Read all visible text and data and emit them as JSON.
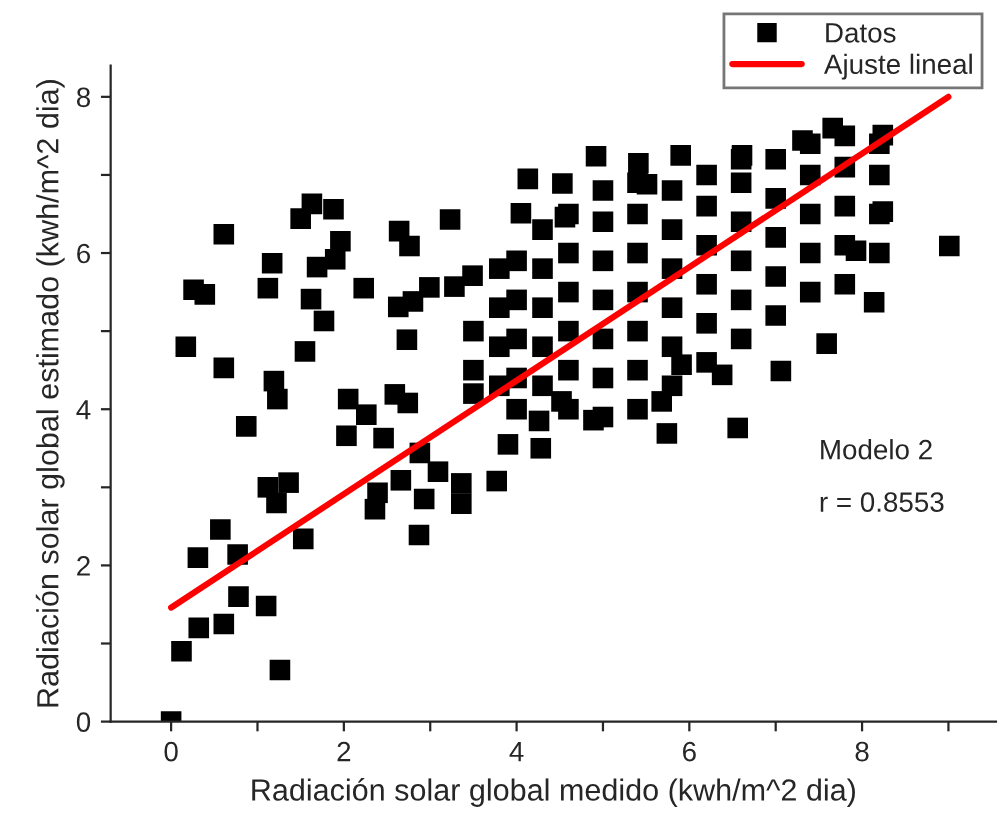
{
  "chart_data": {
    "type": "scatter",
    "xlabel": "Radiación solar global medido (kwh/m^2 dia)",
    "ylabel": "Radiación solar global estimado (kwh/m^2 dia)",
    "xlim": [
      -0.7,
      9.55
    ],
    "ylim": [
      0,
      8.4
    ],
    "xticks": [
      0,
      {
        "value": 1,
        "label": null
      },
      2,
      {
        "value": 3,
        "label": null
      },
      4,
      {
        "value": 5,
        "label": null
      },
      6,
      {
        "value": 7,
        "label": null
      },
      8,
      {
        "value": 9,
        "label": null
      }
    ],
    "yticks": [
      0,
      {
        "value": 1,
        "label": null
      },
      2,
      {
        "value": 3,
        "label": null
      },
      4,
      {
        "value": 5,
        "label": null
      },
      6,
      {
        "value": 7,
        "label": null
      },
      8
    ],
    "grid": false,
    "legend": "top right",
    "series": [
      {
        "name": "Datos",
        "marker": "square",
        "color": "#000000",
        "x": [
          0.0,
          0.12,
          0.32,
          0.61,
          0.78,
          1.1,
          1.26,
          0.31,
          0.57,
          0.77,
          1.53,
          1.12,
          1.22,
          1.36,
          0.87,
          0.17,
          0.61,
          0.26,
          0.39,
          0.61,
          1.12,
          1.17,
          1.19,
          1.23,
          1.55,
          1.5,
          1.63,
          1.88,
          1.96,
          1.9,
          1.69,
          1.62,
          1.77,
          2.05,
          2.03,
          2.26,
          2.23,
          2.39,
          2.36,
          2.46,
          2.59,
          2.74,
          2.63,
          2.73,
          2.64,
          2.76,
          2.66,
          2.87,
          2.93,
          3.09,
          2.88,
          3.36,
          3.36,
          3.77,
          3.23,
          3.28,
          3.49,
          2.99,
          2.8,
          4.13,
          4.05,
          4.26,
          4.28,
          3.9,
          4.92,
          5.41,
          5.9,
          4.53,
          9.01,
          8.14,
          7.59,
          7.06,
          6.56,
          5.74,
          4.89,
          7.66,
          8.24,
          8.24,
          7.93,
          5.68,
          6.38,
          5.91,
          4.52,
          4.56,
          6.61,
          7.31,
          5.51,
          3.5,
          3.5,
          3.5,
          3.8,
          3.8,
          3.8,
          3.8,
          4.0,
          4.0,
          4.0,
          4.0,
          4.0,
          4.3,
          4.3,
          4.3,
          4.3,
          4.3,
          4.6,
          4.6,
          4.6,
          4.6,
          4.6,
          4.6,
          5.0,
          5.0,
          5.0,
          5.0,
          5.0,
          5.0,
          5.0,
          5.4,
          5.4,
          5.4,
          5.4,
          5.4,
          5.4,
          5.4,
          5.8,
          5.8,
          5.8,
          5.8,
          5.8,
          5.8,
          6.2,
          6.2,
          6.2,
          6.2,
          6.2,
          6.2,
          6.6,
          6.6,
          6.6,
          6.6,
          6.6,
          6.6,
          7.0,
          7.0,
          7.0,
          7.0,
          7.0,
          7.4,
          7.4,
          7.4,
          7.4,
          7.4,
          7.8,
          7.8,
          7.8,
          7.8,
          7.8,
          8.2,
          8.2,
          8.2,
          8.2
        ],
        "values": [
          0.0,
          0.9,
          1.2,
          1.25,
          1.6,
          1.48,
          0.66,
          2.1,
          2.46,
          2.14,
          2.34,
          3.0,
          2.8,
          3.06,
          3.78,
          4.8,
          4.53,
          5.53,
          5.47,
          6.24,
          5.55,
          5.87,
          4.36,
          4.13,
          4.74,
          6.44,
          6.63,
          6.56,
          6.15,
          5.92,
          5.82,
          5.41,
          5.13,
          4.13,
          3.66,
          3.93,
          5.55,
          2.93,
          2.72,
          3.63,
          4.19,
          4.08,
          5.31,
          4.89,
          6.28,
          6.09,
          3.09,
          2.39,
          2.85,
          3.2,
          3.44,
          3.05,
          2.79,
          3.08,
          6.43,
          5.57,
          5.71,
          5.56,
          5.38,
          6.95,
          6.51,
          3.85,
          3.5,
          3.55,
          7.24,
          7.15,
          7.25,
          6.89,
          6.09,
          5.37,
          4.84,
          4.49,
          3.76,
          3.69,
          3.86,
          7.6,
          7.51,
          6.53,
          6.03,
          4.1,
          4.44,
          4.57,
          4.1,
          6.46,
          7.25,
          7.44,
          6.88,
          4.5,
          5.0,
          4.2,
          4.8,
          5.3,
          4.3,
          5.8,
          4.4,
          4.9,
          5.4,
          5.9,
          4.0,
          4.3,
          4.8,
          5.3,
          5.8,
          6.3,
          4.0,
          4.5,
          5.0,
          5.5,
          6.0,
          6.5,
          3.9,
          4.4,
          4.9,
          5.4,
          5.9,
          6.4,
          6.8,
          4.0,
          4.5,
          5.0,
          5.5,
          6.0,
          6.5,
          6.9,
          4.3,
          4.8,
          5.3,
          5.8,
          6.3,
          6.8,
          4.6,
          5.1,
          5.6,
          6.1,
          6.6,
          7.0,
          4.9,
          5.4,
          5.9,
          6.4,
          6.9,
          7.2,
          5.2,
          5.7,
          6.2,
          6.7,
          7.2,
          5.5,
          6.0,
          6.5,
          7.0,
          7.4,
          5.6,
          6.1,
          6.6,
          7.1,
          7.5,
          6.0,
          6.5,
          7.0,
          7.4
        ]
      },
      {
        "name": "Ajuste lineal",
        "type": "line",
        "marker": "none",
        "line_style": "solid",
        "color": "#ff0000",
        "x": [
          0,
          9
        ],
        "values": [
          1.46,
          8.0
        ]
      }
    ],
    "annotations": [
      "Modelo 2",
      "r = 0.8553"
    ]
  }
}
